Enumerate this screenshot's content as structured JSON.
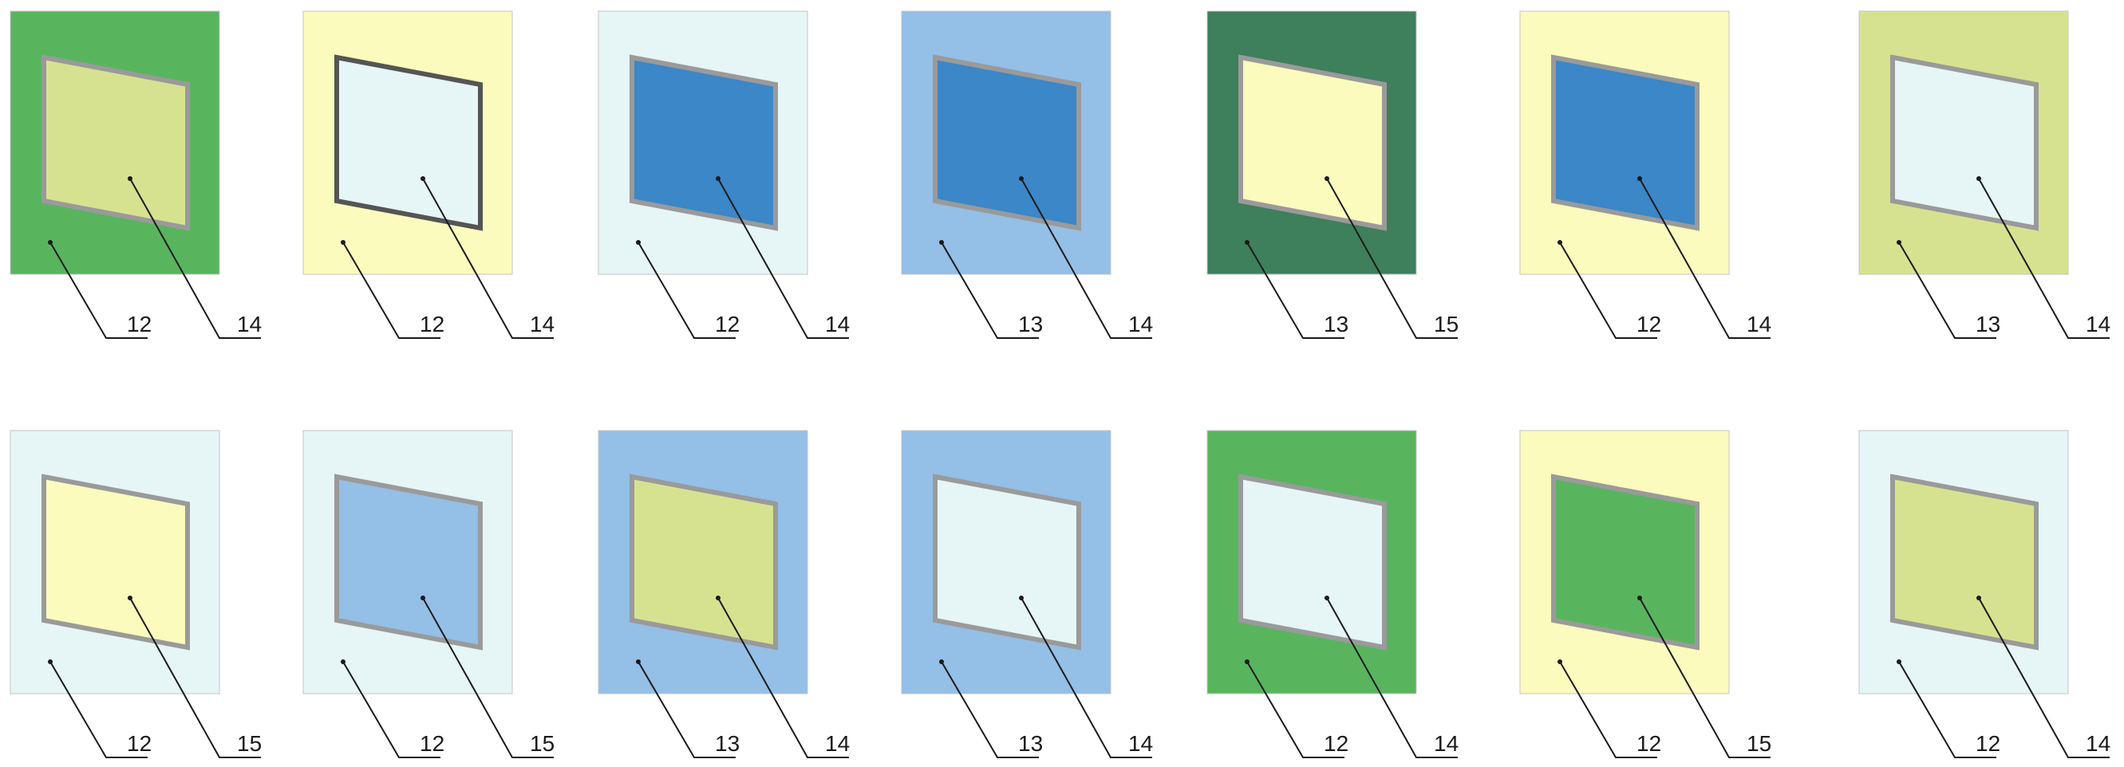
{
  "colors": {
    "green": "#58b55e",
    "dark_green": "#3e7f5c",
    "pale_yellow": "#fafbbc",
    "pale_cyan": "#e6f5f6",
    "light_blue": "#94bfe6",
    "blue": "#3b87c8",
    "lime": "#d7e290",
    "panel_frame": "#9a9a9a",
    "dark_frame": "#555555",
    "ink": "#1a1a1a"
  },
  "panels": [
    {
      "row": 0,
      "col": 0,
      "background": "green",
      "insert": "lime",
      "frame": "panel_frame",
      "label_background": "12",
      "label_insert": "14"
    },
    {
      "row": 0,
      "col": 1,
      "background": "pale_yellow",
      "insert": "pale_cyan",
      "frame": "dark_frame",
      "label_background": "12",
      "label_insert": "14"
    },
    {
      "row": 0,
      "col": 2,
      "background": "pale_cyan",
      "insert": "blue",
      "frame": "panel_frame",
      "label_background": "12",
      "label_insert": "14"
    },
    {
      "row": 0,
      "col": 3,
      "background": "light_blue",
      "insert": "blue",
      "frame": "panel_frame",
      "label_background": "13",
      "label_insert": "14"
    },
    {
      "row": 0,
      "col": 4,
      "background": "dark_green",
      "insert": "pale_yellow",
      "frame": "panel_frame",
      "label_background": "13",
      "label_insert": "15"
    },
    {
      "row": 0,
      "col": 5,
      "background": "pale_yellow",
      "insert": "blue",
      "frame": "panel_frame",
      "label_background": "12",
      "label_insert": "14"
    },
    {
      "row": 0,
      "col": 6,
      "background": "lime",
      "insert": "pale_cyan",
      "frame": "panel_frame",
      "label_background": "13",
      "label_insert": "14"
    },
    {
      "row": 1,
      "col": 0,
      "background": "pale_cyan",
      "insert": "pale_yellow",
      "frame": "panel_frame",
      "label_background": "12",
      "label_insert": "15"
    },
    {
      "row": 1,
      "col": 1,
      "background": "pale_cyan",
      "insert": "light_blue",
      "frame": "panel_frame",
      "label_background": "12",
      "label_insert": "15"
    },
    {
      "row": 1,
      "col": 2,
      "background": "light_blue",
      "insert": "lime",
      "frame": "panel_frame",
      "label_background": "13",
      "label_insert": "14"
    },
    {
      "row": 1,
      "col": 3,
      "background": "light_blue",
      "insert": "pale_cyan",
      "frame": "panel_frame",
      "label_background": "13",
      "label_insert": "14"
    },
    {
      "row": 1,
      "col": 4,
      "background": "green",
      "insert": "pale_cyan",
      "frame": "panel_frame",
      "label_background": "12",
      "label_insert": "14"
    },
    {
      "row": 1,
      "col": 5,
      "background": "pale_yellow",
      "insert": "green",
      "frame": "panel_frame",
      "label_background": "12",
      "label_insert": "15"
    },
    {
      "row": 1,
      "col": 6,
      "background": "pale_cyan",
      "insert": "lime",
      "frame": "panel_frame",
      "label_background": "12",
      "label_insert": "14"
    }
  ]
}
